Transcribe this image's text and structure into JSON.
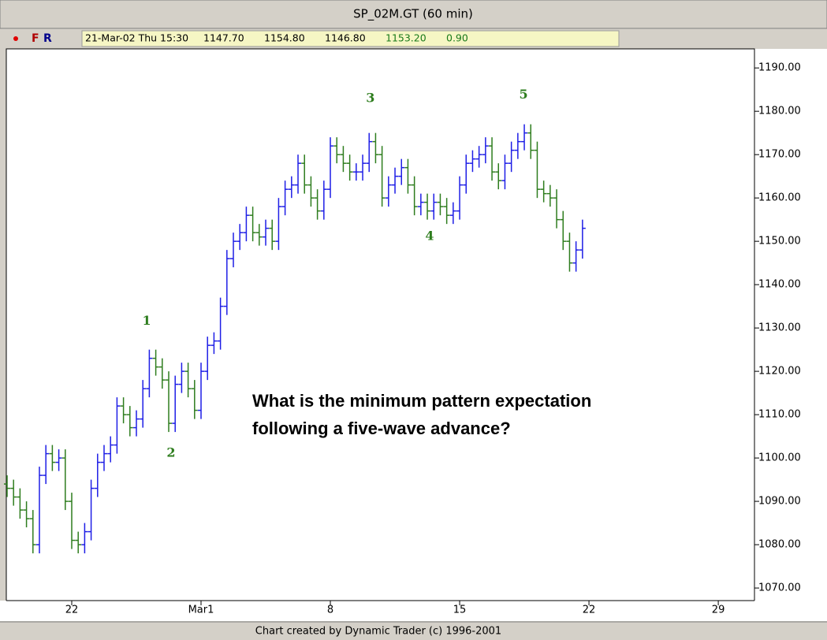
{
  "chart_data": {
    "type": "ohlc",
    "title": "SP_02M.GT (60 min)",
    "footer": "Chart created by Dynamic Trader (c) 1996-2001",
    "info_bar": {
      "flags": [
        "F",
        "R"
      ],
      "fields": [
        "21-Mar-02 Thu 15:30",
        "1147.70",
        "1154.80",
        "1146.80"
      ],
      "change_fields": [
        "1153.20",
        "0.90"
      ]
    },
    "note_lines": [
      "What is the minimum pattern expectation",
      "following a five-wave advance?"
    ],
    "annotations": [
      {
        "text": "1",
        "x": 2.9,
        "y": 1131.6
      },
      {
        "text": "2",
        "x": 3.84,
        "y": 1101.1
      },
      {
        "text": "3",
        "x": 11.55,
        "y": 1182.9
      },
      {
        "text": "4",
        "x": 13.84,
        "y": 1151.1
      },
      {
        "text": "5",
        "x": 17.47,
        "y": 1183.8
      }
    ],
    "up_color": "#1e1ee6",
    "down_color": "#2e7d1e",
    "xlim": [
      -2.53,
      26.4
    ],
    "xticks": [
      {
        "value": 0,
        "label": "22"
      },
      {
        "value": 5,
        "label": "Mar1"
      },
      {
        "value": 10,
        "label": "8"
      },
      {
        "value": 15,
        "label": "15"
      },
      {
        "value": 20,
        "label": "22"
      },
      {
        "value": 25,
        "label": "29"
      }
    ],
    "ylim": [
      1067.1,
      1194.4
    ],
    "yticks": [
      {
        "value": 1070,
        "label": "1070.00"
      },
      {
        "value": 1080,
        "label": "1080.00"
      },
      {
        "value": 1090,
        "label": "1090.00"
      },
      {
        "value": 1100,
        "label": "1100.00"
      },
      {
        "value": 1110,
        "label": "1110.00"
      },
      {
        "value": 1120,
        "label": "1120.00"
      },
      {
        "value": 1130,
        "label": "1130.00"
      },
      {
        "value": 1140,
        "label": "1140.00"
      },
      {
        "value": 1150,
        "label": "1150.00"
      },
      {
        "value": 1160,
        "label": "1160.00"
      },
      {
        "value": 1170,
        "label": "1170.00"
      },
      {
        "value": 1180,
        "label": "1180.00"
      },
      {
        "value": 1190,
        "label": "1190.00"
      }
    ],
    "x": [
      -2.5,
      -2.25,
      -2.0,
      -1.75,
      -1.5,
      -1.25,
      -1.0,
      -0.75,
      -0.5,
      -0.25,
      0,
      0.25,
      0.5,
      0.75,
      1.0,
      1.25,
      1.5,
      1.75,
      2.0,
      2.25,
      2.5,
      2.75,
      3.0,
      3.25,
      3.5,
      3.75,
      4.0,
      4.25,
      4.5,
      4.75,
      5.0,
      5.25,
      5.5,
      5.75,
      6.0,
      6.25,
      6.5,
      6.75,
      7.0,
      7.25,
      7.5,
      7.75,
      8.0,
      8.25,
      8.5,
      8.75,
      9.0,
      9.25,
      9.5,
      9.75,
      10.0,
      10.25,
      10.5,
      10.75,
      11.0,
      11.25,
      11.5,
      11.75,
      12.0,
      12.25,
      12.5,
      12.75,
      13.0,
      13.25,
      13.5,
      13.75,
      14.0,
      14.25,
      14.5,
      14.75,
      15.0,
      15.25,
      15.5,
      15.75,
      16.0,
      16.25,
      16.5,
      16.75,
      17.0,
      17.25,
      17.5,
      17.75,
      18.0,
      18.25,
      18.5,
      18.75,
      19.0,
      19.25,
      19.5,
      19.75
    ],
    "open": [
      1094,
      1093,
      1091,
      1088,
      1086,
      1080,
      1096,
      1101,
      1099,
      1100,
      1090,
      1081,
      1080,
      1083,
      1093,
      1099,
      1101,
      1103,
      1112,
      1110,
      1107,
      1109,
      1116,
      1123,
      1121,
      1118,
      1108,
      1117,
      1120,
      1116,
      1111,
      1120,
      1126,
      1127,
      1135,
      1146,
      1150,
      1152,
      1156,
      1152,
      1151,
      1153,
      1150,
      1158,
      1162,
      1163,
      1168,
      1163,
      1160,
      1157,
      1162,
      1172,
      1170,
      1168,
      1166,
      1166,
      1168,
      1173,
      1170,
      1160,
      1163,
      1165,
      1167,
      1163,
      1158,
      1159,
      1157,
      1159,
      1158,
      1156,
      1157,
      1163,
      1168,
      1169,
      1170,
      1172,
      1166,
      1164,
      1168,
      1171,
      1173,
      1175,
      1171,
      1162,
      1161,
      1160,
      1155,
      1150,
      1145,
      1148
    ],
    "high": [
      1096,
      1095,
      1093,
      1090,
      1088,
      1098,
      1103,
      1103,
      1102,
      1102,
      1092,
      1083,
      1085,
      1095,
      1101,
      1103,
      1105,
      1114,
      1114,
      1112,
      1111,
      1118,
      1125,
      1125,
      1123,
      1120,
      1119,
      1122,
      1122,
      1118,
      1122,
      1128,
      1129,
      1137,
      1148,
      1152,
      1154,
      1158,
      1158,
      1154,
      1155,
      1155,
      1160,
      1164,
      1165,
      1170,
      1170,
      1165,
      1162,
      1164,
      1174,
      1174,
      1172,
      1170,
      1168,
      1170,
      1175,
      1175,
      1172,
      1165,
      1167,
      1169,
      1169,
      1165,
      1161,
      1161,
      1161,
      1161,
      1160,
      1159,
      1165,
      1170,
      1171,
      1172,
      1174,
      1174,
      1168,
      1170,
      1173,
      1175,
      1177,
      1177,
      1173,
      1164,
      1163,
      1162,
      1157,
      1152,
      1150,
      1155
    ],
    "low": [
      1091,
      1089,
      1086,
      1084,
      1078,
      1078,
      1094,
      1097,
      1097,
      1088,
      1079,
      1078,
      1078,
      1081,
      1091,
      1097,
      1099,
      1101,
      1108,
      1105,
      1105,
      1107,
      1114,
      1119,
      1116,
      1106,
      1106,
      1115,
      1114,
      1109,
      1109,
      1118,
      1124,
      1125,
      1133,
      1144,
      1148,
      1150,
      1150,
      1149,
      1149,
      1148,
      1148,
      1156,
      1160,
      1161,
      1161,
      1158,
      1155,
      1155,
      1160,
      1168,
      1166,
      1164,
      1164,
      1164,
      1166,
      1168,
      1158,
      1158,
      1161,
      1163,
      1161,
      1156,
      1156,
      1155,
      1155,
      1156,
      1154,
      1154,
      1155,
      1161,
      1166,
      1167,
      1168,
      1164,
      1162,
      1162,
      1166,
      1169,
      1171,
      1169,
      1160,
      1159,
      1158,
      1153,
      1148,
      1143,
      1143,
      1146
    ],
    "close": [
      1093,
      1091,
      1088,
      1086,
      1080,
      1096,
      1101,
      1099,
      1100,
      1090,
      1081,
      1080,
      1083,
      1093,
      1099,
      1101,
      1103,
      1112,
      1110,
      1107,
      1109,
      1116,
      1123,
      1121,
      1118,
      1108,
      1117,
      1120,
      1116,
      1111,
      1120,
      1126,
      1127,
      1135,
      1146,
      1150,
      1152,
      1156,
      1152,
      1151,
      1153,
      1150,
      1158,
      1162,
      1163,
      1168,
      1163,
      1160,
      1157,
      1162,
      1172,
      1170,
      1168,
      1166,
      1166,
      1168,
      1173,
      1170,
      1160,
      1163,
      1165,
      1167,
      1163,
      1158,
      1159,
      1157,
      1159,
      1158,
      1156,
      1157,
      1163,
      1168,
      1169,
      1170,
      1172,
      1166,
      1164,
      1168,
      1171,
      1173,
      1175,
      1171,
      1162,
      1161,
      1160,
      1155,
      1150,
      1145,
      1148,
      1153
    ]
  }
}
